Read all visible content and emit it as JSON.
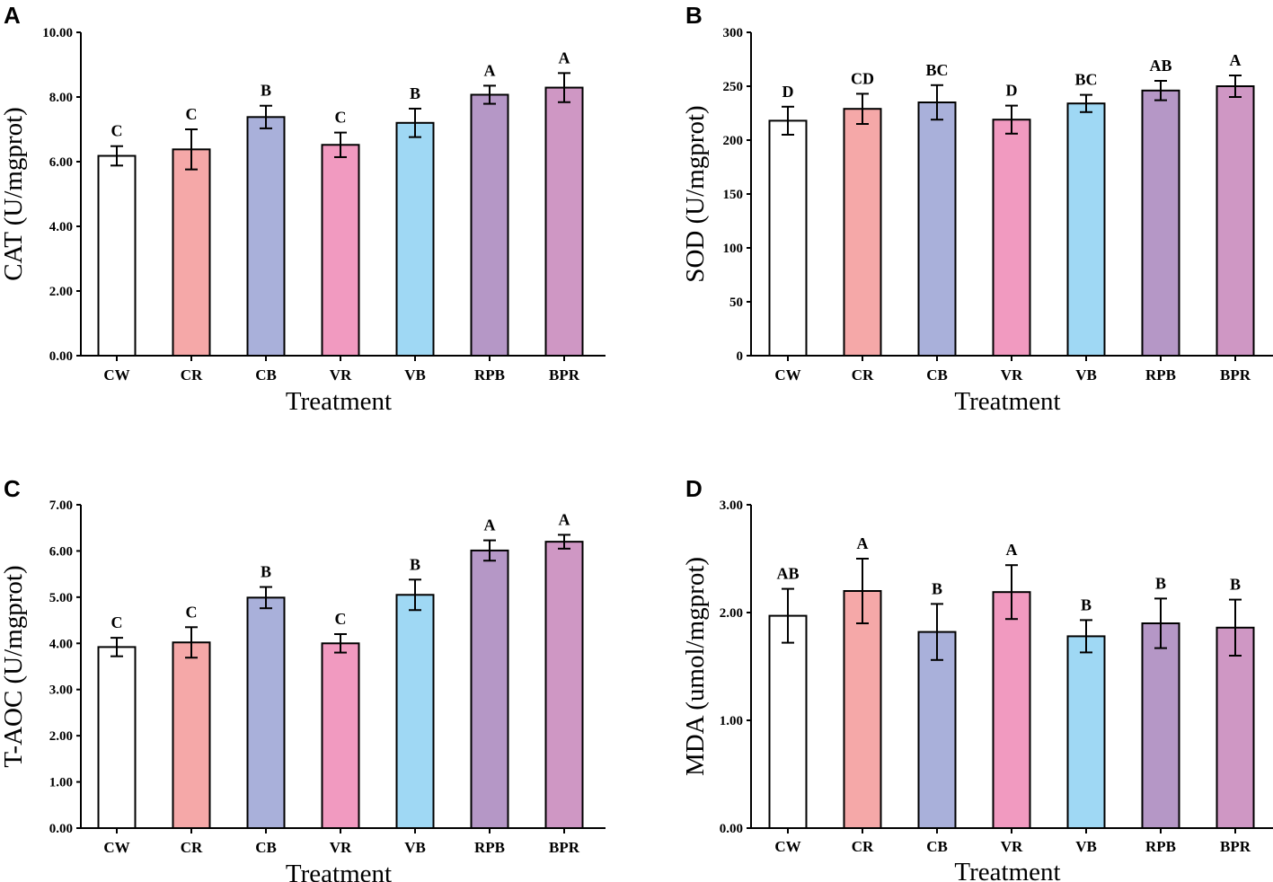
{
  "chart_data": [
    {
      "panel": "A",
      "type": "bar",
      "categories": [
        "CW",
        "CR",
        "CB",
        "VR",
        "VB",
        "RPB",
        "BPR"
      ],
      "values": [
        6.18,
        6.38,
        7.38,
        6.52,
        7.2,
        8.07,
        8.29
      ],
      "errors": [
        0.3,
        0.62,
        0.35,
        0.38,
        0.44,
        0.28,
        0.45
      ],
      "significance": [
        "C",
        "C",
        "B",
        "C",
        "B",
        "A",
        "A"
      ],
      "xlabel": "Treatment",
      "ylabel": "CAT (U/mgprot)",
      "ylim": [
        0,
        10
      ],
      "yticks": [
        "0.00",
        "2.00",
        "4.00",
        "6.00",
        "8.00",
        "10.00"
      ]
    },
    {
      "panel": "B",
      "type": "bar",
      "categories": [
        "CW",
        "CR",
        "CB",
        "VR",
        "VB",
        "RPB",
        "BPR"
      ],
      "values": [
        218,
        229,
        235,
        219,
        234,
        246,
        250
      ],
      "errors": [
        13,
        14,
        16,
        13,
        8,
        9,
        10
      ],
      "significance": [
        "D",
        "CD",
        "BC",
        "D",
        "BC",
        "AB",
        "A"
      ],
      "xlabel": "Treatment",
      "ylabel": "SOD (U/mgprot)",
      "ylim": [
        0,
        300
      ],
      "yticks": [
        "0",
        "50",
        "100",
        "150",
        "200",
        "250",
        "300"
      ]
    },
    {
      "panel": "C",
      "type": "bar",
      "categories": [
        "CW",
        "CR",
        "CB",
        "VR",
        "VB",
        "RPB",
        "BPR"
      ],
      "values": [
        3.92,
        4.02,
        4.99,
        4.0,
        5.05,
        6.01,
        6.2
      ],
      "errors": [
        0.2,
        0.33,
        0.23,
        0.2,
        0.33,
        0.22,
        0.15
      ],
      "significance": [
        "C",
        "C",
        "B",
        "C",
        "B",
        "A",
        "A"
      ],
      "xlabel": "Treatment",
      "ylabel": "T-AOC (U/mgprot)",
      "ylim": [
        0,
        7
      ],
      "yticks": [
        "0.00",
        "1.00",
        "2.00",
        "3.00",
        "4.00",
        "5.00",
        "6.00",
        "7.00"
      ]
    },
    {
      "panel": "D",
      "type": "bar",
      "categories": [
        "CW",
        "CR",
        "CB",
        "VR",
        "VB",
        "RPB",
        "BPR"
      ],
      "values": [
        1.97,
        2.2,
        1.82,
        2.19,
        1.78,
        1.9,
        1.86
      ],
      "errors": [
        0.25,
        0.3,
        0.26,
        0.25,
        0.15,
        0.23,
        0.26
      ],
      "significance": [
        "AB",
        "A",
        "B",
        "A",
        "B",
        "B",
        "B"
      ],
      "xlabel": "Treatment",
      "ylabel": "MDA (umol/mgprot)",
      "ylim": [
        0,
        3
      ],
      "yticks": [
        "0.00",
        "1.00",
        "2.00",
        "3.00"
      ]
    }
  ],
  "colors": [
    "#ffffff",
    "#f5a8a8",
    "#a9b0da",
    "#f19ac0",
    "#9fd8f4",
    "#b597c6",
    "#cf97c4"
  ]
}
